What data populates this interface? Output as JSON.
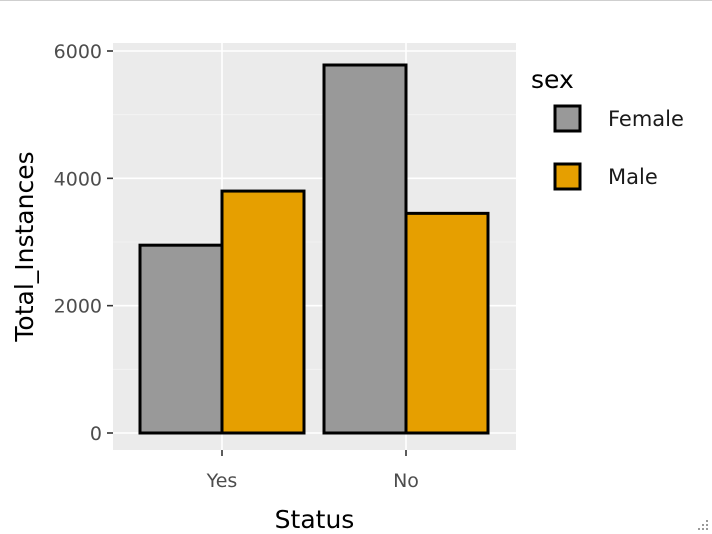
{
  "chart_data": {
    "type": "bar",
    "categories": [
      "Yes",
      "No"
    ],
    "series": [
      {
        "name": "Female",
        "values": [
          2950,
          5780
        ],
        "color": "#999999"
      },
      {
        "name": "Male",
        "values": [
          3800,
          3450
        ],
        "color": "#E69F00"
      }
    ],
    "xlabel": "Status",
    "ylabel": "Total_Instances",
    "ylim": [
      0,
      6000
    ],
    "yticks": [
      0,
      2000,
      4000,
      6000
    ],
    "ytick_labels": [
      "0",
      "2000",
      "4000",
      "6000"
    ],
    "legend": {
      "title": "sex",
      "placement": "right"
    },
    "grid": true,
    "panel_background": "#EBEBEB"
  }
}
